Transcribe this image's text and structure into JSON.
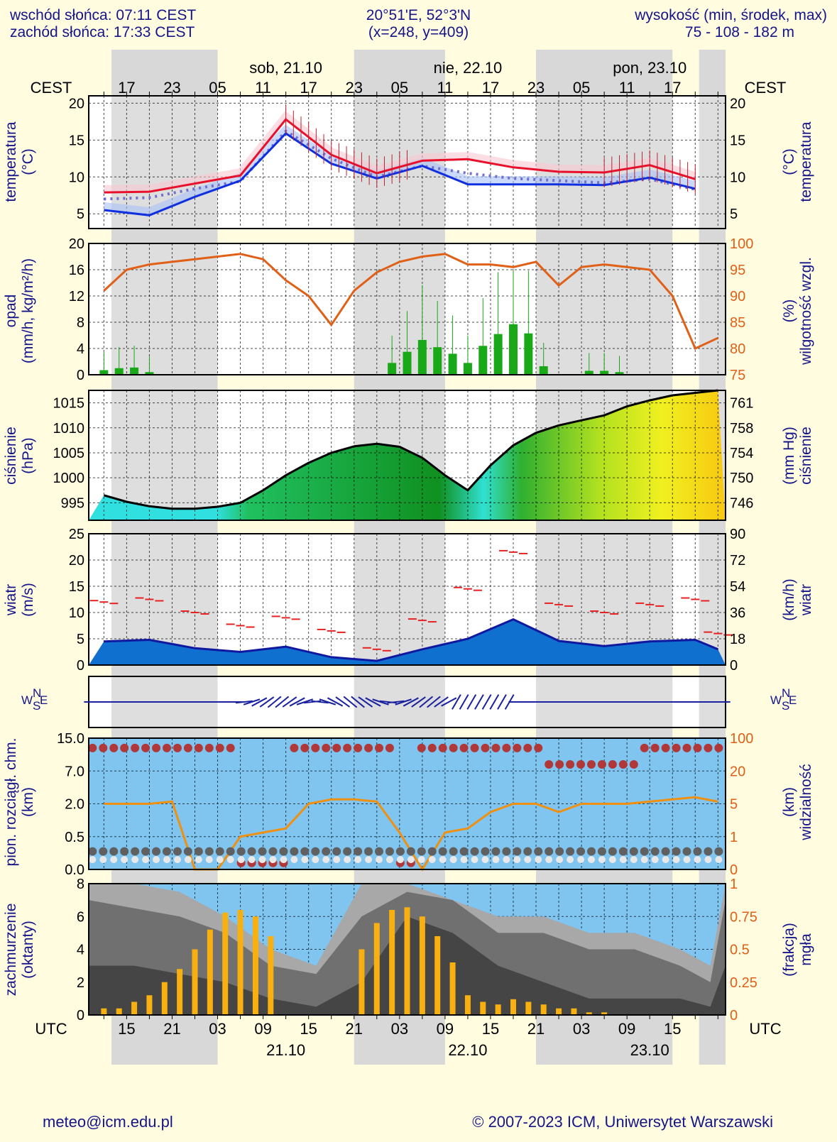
{
  "header": {
    "sunrise": "wschód słońca: 07:11 CEST",
    "sunset": "zachód słońca: 17:33 CEST",
    "coords": "20°51'E, 52°3'N",
    "grid": "(x=248,  y=409)",
    "elev_label": "wysokość (min, środek, max)",
    "elev_values": "75 - 108 - 182 m"
  },
  "top_axis": {
    "tz": "CEST",
    "hours": [
      "17",
      "23",
      "05",
      "11",
      "17",
      "23",
      "05",
      "11",
      "17",
      "23",
      "05",
      "11",
      "17"
    ],
    "days": [
      "sob, 21.10",
      "nie, 22.10",
      "pon, 23.10"
    ]
  },
  "bottom_axis": {
    "tz": "UTC",
    "hours": [
      "15",
      "21",
      "03",
      "09",
      "15",
      "21",
      "03",
      "09",
      "15",
      "21",
      "03",
      "09",
      "15"
    ],
    "days": [
      "21.10",
      "22.10",
      "23.10"
    ]
  },
  "labels": {
    "temp_left": [
      "temperatura",
      "(°C)"
    ],
    "temp_right": [
      "(°C)",
      "temperatura"
    ],
    "precip_left": [
      "opad",
      "(mm/h, kg/m²/h)"
    ],
    "precip_right": [
      "(%)",
      "wilgotność wzgl."
    ],
    "press_left": [
      "ciśnienie",
      "(hPa)"
    ],
    "press_right": [
      "(mm Hg)",
      "ciśnienie"
    ],
    "wind_left": [
      "wiatr",
      "(m/s)"
    ],
    "wind_right": [
      "(km/h)",
      "wiatr"
    ],
    "cloud_left": [
      "pion. rozciągł. chm.",
      "(km)"
    ],
    "cloud_right": [
      "(km)",
      "widzialność"
    ],
    "cover_left": [
      "zachmurzenie",
      "(oktanty)"
    ],
    "cover_right": [
      "(frakcja)",
      "mgła"
    ]
  },
  "footer": {
    "email": "meteo@icm.edu.pl",
    "copyright": "© 2007-2023 ICM, Uniwersytet Warszawski"
  },
  "colors": {
    "background": "#fffce0",
    "text": "#15158a",
    "temp_max": "#e8102a",
    "temp_min": "#1030e0",
    "humidity": "#e06018",
    "precip": "#18a818",
    "wind_gust": "#e82020",
    "wind_speed": "#1018a0",
    "cloud_panel": "#80c4f0",
    "visibility": "#f09010",
    "fog": "#f8b010",
    "night_shade": "#d8d8d8"
  },
  "chart_data": [
    {
      "type": "line",
      "title": "temperatura (°C)",
      "x_hours_utc": [
        12,
        18,
        24,
        30,
        36,
        42,
        48,
        54,
        60,
        66,
        72,
        78,
        84,
        90
      ],
      "ylim": [
        3,
        21
      ],
      "yticks": [
        5,
        10,
        15,
        20
      ],
      "series": [
        {
          "name": "temperature",
          "values": [
            7.9,
            8.0,
            9.1,
            10.2,
            17.8,
            13.0,
            10.5,
            12.2,
            12.4,
            11.3,
            10.7,
            10.6,
            11.6,
            9.7
          ]
        },
        {
          "name": "dew point",
          "values": [
            5.5,
            4.8,
            7.3,
            9.5,
            15.9,
            11.8,
            9.8,
            11.5,
            9.0,
            9.0,
            9.0,
            8.9,
            9.9,
            8.4
          ]
        },
        {
          "name": "apparent temperature",
          "values": [
            7.0,
            7.2,
            8.4,
            9.4,
            16.2,
            12.5,
            10.0,
            11.5,
            10.5,
            9.8,
            9.5,
            9.2,
            9.7,
            8.3
          ]
        }
      ]
    },
    {
      "type": "bar",
      "title": "opad / wilgotność wzgl.",
      "ylim": [
        0,
        20
      ],
      "yticks": [
        0,
        4,
        8,
        12,
        16,
        20
      ],
      "y2lim": [
        75,
        100
      ],
      "y2ticks": [
        75,
        80,
        85,
        90,
        95,
        100
      ],
      "precip_hours_utc": [
        12,
        14,
        16,
        18,
        50,
        52,
        54,
        56,
        58,
        60,
        62,
        64,
        66,
        68,
        70,
        76,
        78,
        80
      ],
      "precip_values": [
        0.7,
        1.0,
        1.1,
        0.4,
        1.8,
        3.5,
        5.3,
        4.2,
        3.2,
        1.8,
        4.4,
        6.2,
        7.7,
        6.3,
        1.3,
        0.6,
        0.6,
        0.4
      ],
      "humidity_hours_utc": [
        12,
        15,
        18,
        21,
        24,
        27,
        30,
        33,
        36,
        39,
        42,
        45,
        48,
        51,
        54,
        57,
        60,
        63,
        66,
        69,
        72,
        75,
        78,
        81,
        84,
        87,
        90,
        93
      ],
      "humidity_values": [
        91,
        95,
        96,
        96.5,
        97,
        97.5,
        98,
        97,
        93,
        90,
        84.5,
        91,
        94.5,
        96.5,
        97.5,
        98,
        96,
        96,
        95.5,
        96.5,
        92,
        95.5,
        96,
        95.5,
        95,
        90,
        80,
        82
      ]
    },
    {
      "type": "area",
      "title": "ciśnienie (hPa)",
      "x_hours_utc": [
        12,
        15,
        18,
        21,
        24,
        27,
        30,
        33,
        36,
        39,
        42,
        45,
        48,
        51,
        54,
        57,
        60,
        63,
        66,
        69,
        72,
        75,
        78,
        81,
        84,
        87,
        90,
        93
      ],
      "values": [
        996.5,
        995.2,
        994.3,
        993.8,
        993.8,
        994.2,
        995.0,
        997.5,
        1000.5,
        1003.0,
        1005.0,
        1006.3,
        1006.8,
        1006.2,
        1004.0,
        1000.5,
        997.5,
        1002.5,
        1006.5,
        1009.0,
        1010.5,
        1011.5,
        1012.5,
        1014.3,
        1015.5,
        1016.5,
        1017.0,
        1017.5
      ],
      "ylim": [
        991.5,
        1017.5
      ],
      "yticks": [
        995,
        1000,
        1005,
        1010,
        1015
      ],
      "y2ticks": [
        746,
        750,
        754,
        758,
        761
      ]
    },
    {
      "type": "line",
      "title": "wiatr (m/s)",
      "x_hours_utc": [
        12,
        18,
        24,
        30,
        36,
        42,
        48,
        54,
        60,
        66,
        72,
        78,
        84,
        90,
        93
      ],
      "ylim": [
        0,
        25
      ],
      "yticks": [
        0,
        5,
        10,
        15,
        20,
        25
      ],
      "y2ticks": [
        0,
        18,
        36,
        54,
        72,
        90
      ],
      "series": [
        {
          "name": "gusts",
          "values": [
            12.0,
            12.5,
            10.0,
            7.5,
            9.0,
            6.5,
            3.0,
            8.5,
            14.5,
            21.5,
            11.5,
            10.0,
            11.5,
            12.5,
            6.0
          ]
        },
        {
          "name": "mean wind",
          "values": [
            4.5,
            4.8,
            3.2,
            2.5,
            3.5,
            1.5,
            0.8,
            3.0,
            5.0,
            8.7,
            4.6,
            3.6,
            4.5,
            4.8,
            3.0
          ]
        }
      ]
    },
    {
      "type": "line",
      "title": "wiatr - kierunek",
      "compass": [
        "N",
        "E",
        "S",
        "W"
      ]
    },
    {
      "type": "scatter",
      "title": "pion. rozciągł. chm. / widzialność (km)",
      "yticks_left": [
        "0.0",
        "0.5",
        "2.0",
        "7.0",
        "15.0"
      ],
      "yticks_right": [
        "0",
        "1",
        "5",
        "20",
        "100"
      ],
      "visibility_hours_utc": [
        12,
        15,
        18,
        21,
        24,
        27,
        30,
        33,
        36,
        39,
        42,
        45,
        48,
        51,
        54,
        57,
        60,
        63,
        66,
        69,
        72,
        75,
        78,
        81,
        84,
        87,
        90,
        93
      ],
      "visibility_km": [
        5,
        5,
        5,
        6,
        0,
        0,
        1,
        1.5,
        2,
        5,
        7,
        7,
        6,
        1.5,
        0,
        1.5,
        2,
        4,
        5,
        5,
        4,
        5,
        5,
        5,
        6,
        7,
        8,
        6
      ]
    },
    {
      "type": "area",
      "title": "zachmurzenie (oktanty) / mgła (frakcja)",
      "ylim": [
        0,
        8
      ],
      "yticks": [
        0,
        2,
        4,
        6,
        8
      ],
      "y2ticks": [
        "0",
        "0.25",
        "0.5",
        "0.75",
        "1"
      ],
      "fog_hours_utc": [
        12,
        14,
        16,
        18,
        20,
        22,
        24,
        26,
        28,
        30,
        32,
        34,
        46,
        48,
        50,
        52,
        54,
        56,
        58,
        60,
        62,
        64,
        66,
        68,
        70,
        72,
        74,
        76,
        78
      ],
      "fog_fraction": [
        0.05,
        0.05,
        0.1,
        0.15,
        0.25,
        0.35,
        0.5,
        0.65,
        0.78,
        0.8,
        0.75,
        0.6,
        0.5,
        0.7,
        0.8,
        0.82,
        0.75,
        0.6,
        0.4,
        0.15,
        0.1,
        0.08,
        0.12,
        0.1,
        0.08,
        0.05,
        0.05,
        0.02,
        0.02
      ]
    }
  ]
}
